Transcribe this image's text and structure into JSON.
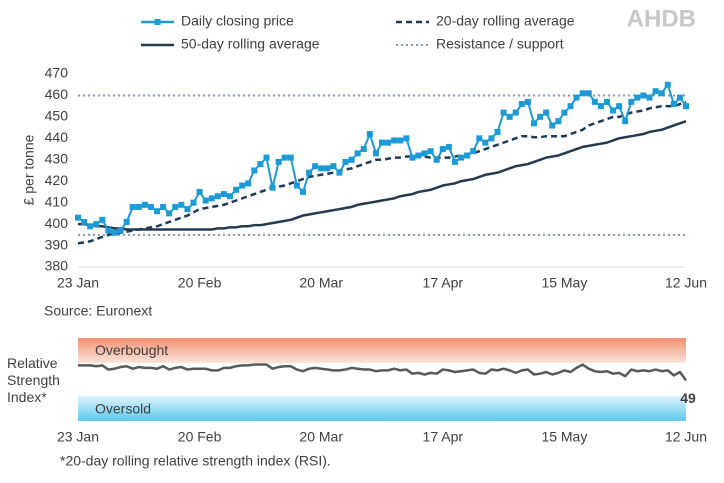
{
  "logo": "AHDB",
  "chart_data": [
    {
      "type": "line",
      "y_label": "£ per tonne",
      "source": "Source: Euronext",
      "grid": false,
      "categories": [
        "23 Jan",
        null,
        null,
        null,
        null,
        null,
        null,
        null,
        null,
        null,
        null,
        null,
        null,
        null,
        null,
        null,
        null,
        null,
        null,
        null,
        "20 Feb",
        null,
        null,
        null,
        null,
        null,
        null,
        null,
        null,
        null,
        null,
        null,
        null,
        null,
        null,
        null,
        null,
        null,
        null,
        null,
        "20 Mar",
        null,
        null,
        null,
        null,
        null,
        null,
        null,
        null,
        null,
        null,
        null,
        null,
        null,
        null,
        null,
        null,
        null,
        null,
        null,
        "17 Apr",
        null,
        null,
        null,
        null,
        null,
        null,
        null,
        null,
        null,
        null,
        null,
        null,
        null,
        null,
        null,
        null,
        null,
        null,
        null,
        "15 May",
        null,
        null,
        null,
        null,
        null,
        null,
        null,
        null,
        null,
        null,
        null,
        null,
        null,
        null,
        null,
        null,
        null,
        null,
        null,
        "12 Jun"
      ],
      "ylim": [
        380,
        470
      ],
      "yticks": [
        380,
        390,
        400,
        410,
        420,
        430,
        440,
        450,
        460,
        470
      ],
      "series": [
        {
          "name": "Daily closing price",
          "color": "#1b9ad6",
          "style": "markers",
          "values": [
            403,
            401,
            399,
            400,
            402,
            397,
            396,
            397,
            401,
            408,
            408,
            409,
            408,
            406,
            408,
            405,
            408,
            409,
            407,
            410,
            415,
            411,
            412,
            413,
            414,
            413,
            416,
            418,
            419,
            425,
            428,
            431,
            417,
            429,
            431,
            431,
            418,
            415,
            424,
            427,
            426,
            426,
            427,
            424,
            429,
            430,
            433,
            435,
            442,
            433,
            438,
            438,
            439,
            439,
            440,
            431,
            432,
            433,
            434,
            430,
            435,
            436,
            429,
            431,
            432,
            434,
            440,
            438,
            440,
            443,
            452,
            450,
            452,
            456,
            457,
            447,
            450,
            452,
            446,
            448,
            452,
            455,
            459,
            461,
            461,
            457,
            455,
            457,
            453,
            455,
            448,
            457,
            459,
            460,
            459,
            462,
            461,
            465,
            456,
            459,
            455
          ]
        },
        {
          "name": "20-day rolling average",
          "color": "#1f3a57",
          "style": "dashed",
          "values": [
            391,
            391.5,
            392,
            393,
            394,
            395,
            395.5,
            396,
            396.5,
            397,
            397.5,
            398,
            398.5,
            399,
            400,
            401,
            402,
            403,
            404,
            405.5,
            407,
            407.5,
            408,
            408.5,
            409,
            410,
            411,
            412,
            413,
            414,
            415,
            416,
            417,
            417.5,
            418,
            419,
            420,
            421,
            422,
            422.5,
            423,
            423.5,
            424,
            425,
            425.5,
            426,
            427,
            428,
            429,
            430,
            430,
            430.5,
            431,
            431,
            431.5,
            431.5,
            432,
            431.5,
            431,
            431,
            431,
            431,
            431.5,
            432,
            432.5,
            433,
            434,
            435,
            436,
            437,
            438,
            439,
            440,
            441,
            441,
            440.5,
            440.5,
            441,
            441,
            441,
            441,
            442,
            443,
            444,
            446,
            447,
            448,
            449,
            450,
            450,
            451,
            452,
            452.5,
            453,
            454,
            454.5,
            455,
            455,
            455,
            456,
            457
          ]
        },
        {
          "name": "50-day rolling average",
          "color": "#243a4f",
          "style": "solid",
          "values": [
            400,
            400,
            399.5,
            399,
            399,
            398.5,
            398,
            398,
            397.5,
            397.5,
            397.5,
            397.5,
            397.5,
            397.5,
            397.5,
            397.5,
            397.5,
            397.5,
            397.5,
            397.5,
            397.5,
            397.5,
            397.5,
            398,
            398,
            398.5,
            398.5,
            399,
            399,
            399.5,
            399.5,
            400,
            400.5,
            401,
            401.5,
            402,
            403,
            404,
            404.5,
            405,
            405.5,
            406,
            406.5,
            407,
            407.5,
            408,
            409,
            409.5,
            410,
            410.5,
            411,
            411.5,
            412,
            413,
            413.5,
            414,
            415,
            415.5,
            416,
            417,
            418,
            418.5,
            419,
            420,
            420.5,
            421,
            422,
            423,
            423.5,
            424,
            425,
            426,
            427,
            427.5,
            428,
            429,
            430,
            431,
            431.5,
            432,
            433,
            434,
            435,
            436,
            436.5,
            437,
            437.5,
            438,
            439,
            440,
            440.5,
            441,
            441.5,
            442,
            443,
            443.5,
            444,
            445,
            446,
            447,
            448
          ]
        }
      ],
      "reference_lines": {
        "name": "Resistance / support",
        "color": "#8497b0",
        "values": [
          460,
          395
        ]
      }
    },
    {
      "type": "line",
      "y_label": "Relative Strength Index*",
      "footnote": "*20-day rolling relative strength index (RSI).",
      "categories": [
        "23 Jan",
        null,
        null,
        null,
        null,
        null,
        null,
        null,
        null,
        null,
        null,
        null,
        null,
        null,
        null,
        null,
        null,
        null,
        null,
        null,
        "20 Feb",
        null,
        null,
        null,
        null,
        null,
        null,
        null,
        null,
        null,
        null,
        null,
        null,
        null,
        null,
        null,
        null,
        null,
        null,
        null,
        "20 Mar",
        null,
        null,
        null,
        null,
        null,
        null,
        null,
        null,
        null,
        null,
        null,
        null,
        null,
        null,
        null,
        null,
        null,
        null,
        null,
        "17 Apr",
        null,
        null,
        null,
        null,
        null,
        null,
        null,
        null,
        null,
        null,
        null,
        null,
        null,
        null,
        null,
        null,
        null,
        null,
        null,
        "15 May",
        null,
        null,
        null,
        null,
        null,
        null,
        null,
        null,
        null,
        null,
        null,
        null,
        null,
        null,
        null,
        null,
        null,
        null,
        null,
        "12 Jun"
      ],
      "ylim": [
        0,
        100
      ],
      "color": "#595959",
      "values": [
        67,
        67,
        67,
        66,
        67,
        62,
        63,
        65,
        66,
        63,
        65,
        64,
        64,
        63,
        66,
        62,
        64,
        65,
        62,
        63,
        63,
        63,
        61,
        61,
        64,
        64,
        66,
        67,
        67,
        68,
        68,
        68,
        63,
        65,
        66,
        66,
        62,
        60,
        63,
        64,
        63,
        62,
        61,
        61,
        62,
        64,
        63,
        62,
        62,
        60,
        61,
        61,
        63,
        61,
        62,
        57,
        58,
        56,
        58,
        57,
        62,
        61,
        59,
        60,
        61,
        62,
        58,
        57,
        62,
        61,
        63,
        61,
        58,
        61,
        62,
        56,
        57,
        59,
        56,
        58,
        61,
        59,
        64,
        68,
        63,
        60,
        59,
        60,
        57,
        58,
        54,
        62,
        60,
        61,
        60,
        62,
        60,
        61,
        55,
        59,
        49
      ],
      "bands": [
        {
          "label": "Overbought",
          "from": 70,
          "to": 100,
          "color": "#f4a488"
        },
        {
          "label": "Oversold",
          "from": 0,
          "to": 30,
          "color": "#5cc9ee"
        }
      ]
    }
  ]
}
